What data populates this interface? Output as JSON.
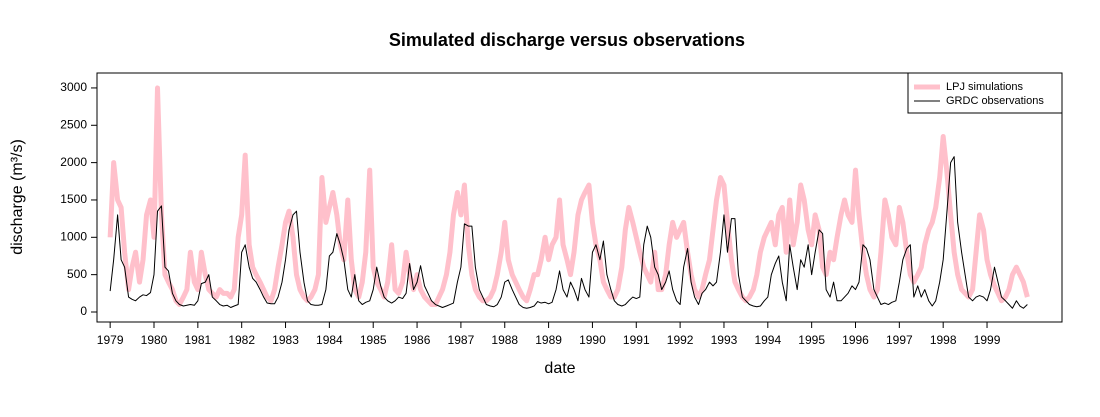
{
  "chart_data": {
    "type": "line",
    "title": "Simulated discharge versus observations",
    "xlabel": "date",
    "ylabel": "discharge (m³/s)",
    "x": [
      1979.0,
      1979.08,
      1979.17,
      1979.25,
      1979.33,
      1979.42,
      1979.5,
      1979.58,
      1979.67,
      1979.75,
      1979.83,
      1979.92,
      1980.0,
      1980.08,
      1980.17,
      1980.25,
      1980.33,
      1980.42,
      1980.5,
      1980.58,
      1980.67,
      1980.75,
      1980.83,
      1980.92,
      1981.0,
      1981.08,
      1981.17,
      1981.25,
      1981.33,
      1981.42,
      1981.5,
      1981.58,
      1981.67,
      1981.75,
      1981.83,
      1981.92,
      1982.0,
      1982.08,
      1982.17,
      1982.25,
      1982.33,
      1982.42,
      1982.5,
      1982.58,
      1982.67,
      1982.75,
      1982.83,
      1982.92,
      1983.0,
      1983.08,
      1983.17,
      1983.25,
      1983.33,
      1983.42,
      1983.5,
      1983.58,
      1983.67,
      1983.75,
      1983.83,
      1983.92,
      1984.0,
      1984.08,
      1984.17,
      1984.25,
      1984.33,
      1984.42,
      1984.5,
      1984.58,
      1984.67,
      1984.75,
      1984.83,
      1984.92,
      1985.0,
      1985.08,
      1985.17,
      1985.25,
      1985.33,
      1985.42,
      1985.5,
      1985.58,
      1985.67,
      1985.75,
      1985.83,
      1985.92,
      1986.0,
      1986.08,
      1986.17,
      1986.25,
      1986.33,
      1986.42,
      1986.5,
      1986.58,
      1986.67,
      1986.75,
      1986.83,
      1986.92,
      1987.0,
      1987.08,
      1987.17,
      1987.25,
      1987.33,
      1987.42,
      1987.5,
      1987.58,
      1987.67,
      1987.75,
      1987.83,
      1987.92,
      1988.0,
      1988.08,
      1988.17,
      1988.25,
      1988.33,
      1988.42,
      1988.5,
      1988.58,
      1988.67,
      1988.75,
      1988.83,
      1988.92,
      1989.0,
      1989.08,
      1989.17,
      1989.25,
      1989.33,
      1989.42,
      1989.5,
      1989.58,
      1989.67,
      1989.75,
      1989.83,
      1989.92,
      1990.0,
      1990.08,
      1990.17,
      1990.25,
      1990.33,
      1990.42,
      1990.5,
      1990.58,
      1990.67,
      1990.75,
      1990.83,
      1990.92,
      1991.0,
      1991.08,
      1991.17,
      1991.25,
      1991.33,
      1991.42,
      1991.5,
      1991.58,
      1991.67,
      1991.75,
      1991.83,
      1991.92,
      1992.0,
      1992.08,
      1992.17,
      1992.25,
      1992.33,
      1992.42,
      1992.5,
      1992.58,
      1992.67,
      1992.75,
      1992.83,
      1992.92,
      1993.0,
      1993.08,
      1993.17,
      1993.25,
      1993.33,
      1993.42,
      1993.5,
      1993.58,
      1993.67,
      1993.75,
      1993.83,
      1993.92,
      1994.0,
      1994.08,
      1994.17,
      1994.25,
      1994.33,
      1994.42,
      1994.5,
      1994.58,
      1994.67,
      1994.75,
      1994.83,
      1994.92,
      1995.0,
      1995.08,
      1995.17,
      1995.25,
      1995.33,
      1995.42,
      1995.5,
      1995.58,
      1995.67,
      1995.75,
      1995.83,
      1995.92,
      1996.0,
      1996.08,
      1996.17,
      1996.25,
      1996.33,
      1996.42,
      1996.5,
      1996.58,
      1996.67,
      1996.75,
      1996.83,
      1996.92,
      1997.0,
      1997.08,
      1997.17,
      1997.25,
      1997.33,
      1997.42,
      1997.5,
      1997.58,
      1997.67,
      1997.75,
      1997.83,
      1997.92,
      1998.0,
      1998.08,
      1998.17,
      1998.25,
      1998.33,
      1998.42,
      1998.5,
      1998.58,
      1998.67,
      1998.75,
      1998.83,
      1998.92,
      1999.0,
      1999.08,
      1999.17,
      1999.25,
      1999.33,
      1999.42,
      1999.5,
      1999.58,
      1999.67,
      1999.75,
      1999.83,
      1999.92
    ],
    "series": [
      {
        "name": "LPJ simulations",
        "color": "#ffc0cb",
        "width": 5,
        "values": [
          1000,
          2000,
          1500,
          1400,
          800,
          300,
          600,
          800,
          400,
          700,
          1300,
          1500,
          1000,
          3000,
          1300,
          500,
          400,
          300,
          150,
          100,
          200,
          300,
          800,
          400,
          300,
          800,
          500,
          300,
          250,
          200,
          300,
          250,
          250,
          200,
          300,
          1000,
          1300,
          2100,
          900,
          600,
          500,
          400,
          300,
          200,
          150,
          300,
          600,
          900,
          1200,
          1350,
          1000,
          500,
          300,
          200,
          150,
          200,
          300,
          500,
          1800,
          1200,
          1400,
          1600,
          1300,
          900,
          700,
          1500,
          700,
          300,
          200,
          400,
          800,
          1900,
          600,
          400,
          300,
          200,
          400,
          900,
          300,
          250,
          400,
          800,
          500,
          300,
          500,
          300,
          200,
          150,
          100,
          100,
          200,
          300,
          500,
          800,
          1300,
          1600,
          1300,
          1700,
          900,
          500,
          300,
          200,
          150,
          150,
          200,
          300,
          500,
          800,
          1200,
          700,
          500,
          400,
          300,
          200,
          150,
          300,
          500,
          500,
          700,
          1000,
          700,
          900,
          1000,
          1500,
          900,
          700,
          500,
          800,
          1300,
          1500,
          1600,
          1700,
          1200,
          900,
          700,
          400,
          300,
          200,
          200,
          300,
          600,
          1100,
          1400,
          1200,
          1000,
          800,
          600,
          500,
          400,
          800,
          300,
          300,
          500,
          900,
          1200,
          1000,
          1100,
          1200,
          800,
          500,
          300,
          200,
          300,
          500,
          700,
          1100,
          1500,
          1800,
          1700,
          1200,
          700,
          400,
          300,
          200,
          150,
          200,
          300,
          500,
          800,
          1000,
          1100,
          1200,
          900,
          1300,
          1400,
          800,
          1500,
          900,
          1200,
          1700,
          1500,
          1100,
          900,
          1300,
          1100,
          600,
          500,
          800,
          700,
          1000,
          1300,
          1500,
          1300,
          1200,
          1900,
          1300,
          800,
          500,
          300,
          200,
          300,
          800,
          1500,
          1300,
          1000,
          900,
          1400,
          1200,
          800,
          500,
          400,
          500,
          600,
          900,
          1100,
          1200,
          1400,
          1800,
          2350,
          1900,
          1300,
          800,
          500,
          300,
          250,
          200,
          300,
          800,
          1300,
          1100,
          700,
          500,
          350,
          250,
          150,
          200,
          300,
          500,
          600,
          500,
          400,
          200
        ]
      },
      {
        "name": "GRDC observations",
        "color": "#000000",
        "width": 1,
        "values": [
          280,
          700,
          1300,
          700,
          600,
          200,
          170,
          150,
          200,
          230,
          220,
          260,
          500,
          1350,
          1420,
          600,
          550,
          250,
          150,
          100,
          80,
          90,
          100,
          90,
          150,
          380,
          400,
          500,
          200,
          150,
          100,
          80,
          90,
          60,
          80,
          100,
          800,
          900,
          600,
          450,
          400,
          300,
          200,
          120,
          110,
          110,
          200,
          400,
          700,
          1100,
          1300,
          1350,
          800,
          400,
          150,
          100,
          90,
          90,
          100,
          300,
          750,
          800,
          1050,
          900,
          700,
          300,
          200,
          500,
          150,
          100,
          130,
          150,
          300,
          600,
          350,
          200,
          150,
          120,
          150,
          200,
          180,
          250,
          650,
          300,
          400,
          620,
          350,
          250,
          150,
          100,
          80,
          60,
          80,
          100,
          120,
          400,
          600,
          1180,
          1150,
          1150,
          600,
          300,
          200,
          100,
          80,
          70,
          100,
          200,
          400,
          430,
          300,
          200,
          100,
          60,
          50,
          60,
          80,
          140,
          120,
          130,
          110,
          130,
          300,
          550,
          300,
          200,
          400,
          300,
          150,
          450,
          300,
          200,
          800,
          900,
          700,
          950,
          500,
          300,
          150,
          100,
          80,
          100,
          150,
          200,
          180,
          200,
          900,
          1150,
          1000,
          600,
          500,
          300,
          400,
          550,
          300,
          150,
          100,
          600,
          850,
          400,
          200,
          100,
          250,
          300,
          400,
          350,
          400,
          800,
          1300,
          800,
          1250,
          1250,
          500,
          200,
          150,
          100,
          80,
          70,
          80,
          150,
          200,
          500,
          650,
          750,
          400,
          150,
          900,
          600,
          300,
          700,
          600,
          900,
          500,
          800,
          1100,
          1050,
          300,
          200,
          400,
          150,
          150,
          200,
          250,
          350,
          300,
          400,
          900,
          850,
          700,
          300,
          200,
          100,
          120,
          100,
          130,
          150,
          400,
          700,
          850,
          900,
          200,
          350,
          200,
          300,
          150,
          80,
          150,
          400,
          700,
          1300,
          2000,
          2080,
          1200,
          800,
          500,
          200,
          150,
          200,
          220,
          200,
          150,
          300,
          600,
          400,
          200,
          150,
          100,
          50,
          150,
          80,
          50,
          100
        ]
      }
    ],
    "xlim": [
      1978.7,
      2000.71
    ],
    "xticks": [
      1979,
      1980,
      1981,
      1982,
      1983,
      1984,
      1985,
      1986,
      1987,
      1988,
      1989,
      1990,
      1991,
      1992,
      1993,
      1994,
      1995,
      1996,
      1997,
      1998,
      1999
    ],
    "ylim": [
      -134,
      3200
    ],
    "yticks": [
      0,
      500,
      1000,
      1500,
      2000,
      2500,
      3000
    ],
    "legend": "top-right"
  }
}
